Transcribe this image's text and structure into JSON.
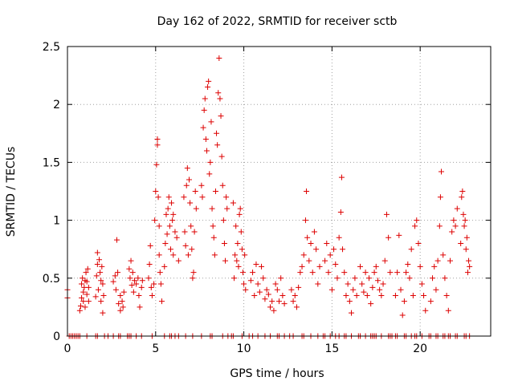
{
  "chart_data": {
    "type": "scatter",
    "title": "Day 162 of 2022, SRMTID for receiver sctb",
    "xlabel": "GPS time / hours",
    "ylabel": "SRMTID / TECUs",
    "xlim": [
      0,
      24
    ],
    "ylim": [
      0,
      2.5
    ],
    "grid": true,
    "marker": "+",
    "color": "#dd0000",
    "x_ticks": [
      0,
      5,
      10,
      15,
      20
    ],
    "x_tick_labels": [
      "0",
      "5",
      "10",
      "15",
      "20"
    ],
    "y_ticks": [
      0,
      0.5,
      1,
      1.5,
      2,
      2.5
    ],
    "y_tick_labels": [
      "0",
      "0.5",
      "1",
      "1.5",
      "2",
      "2.5"
    ],
    "series": [
      {
        "name": "SRMTID",
        "points": [
          [
            0.0,
            0.4
          ],
          [
            0.0,
            0.33
          ],
          [
            0.7,
            0.22
          ],
          [
            0.75,
            0.26
          ],
          [
            0.8,
            0.33
          ],
          [
            0.8,
            0.45
          ],
          [
            0.85,
            0.5
          ],
          [
            0.9,
            0.38
          ],
          [
            0.9,
            0.3
          ],
          [
            0.95,
            0.42
          ],
          [
            1.0,
            0.48
          ],
          [
            1.0,
            0.25
          ],
          [
            1.05,
            0.55
          ],
          [
            1.1,
            0.36
          ],
          [
            1.1,
            0.47
          ],
          [
            1.15,
            0.58
          ],
          [
            1.2,
            0.42
          ],
          [
            1.2,
            0.3
          ],
          [
            1.6,
            0.34
          ],
          [
            1.65,
            0.52
          ],
          [
            1.7,
            0.62
          ],
          [
            1.7,
            0.72
          ],
          [
            1.75,
            0.4
          ],
          [
            1.8,
            0.66
          ],
          [
            1.85,
            0.55
          ],
          [
            1.9,
            0.48
          ],
          [
            1.9,
            0.3
          ],
          [
            1.95,
            0.6
          ],
          [
            2.0,
            0.45
          ],
          [
            2.0,
            0.2
          ],
          [
            2.05,
            0.35
          ],
          [
            2.6,
            0.47
          ],
          [
            2.7,
            0.52
          ],
          [
            2.75,
            0.4
          ],
          [
            2.8,
            0.83
          ],
          [
            2.85,
            0.55
          ],
          [
            2.9,
            0.28
          ],
          [
            3.0,
            0.35
          ],
          [
            3.0,
            0.22
          ],
          [
            3.1,
            0.3
          ],
          [
            3.15,
            0.25
          ],
          [
            3.2,
            0.38
          ],
          [
            3.5,
            0.58
          ],
          [
            3.55,
            0.5
          ],
          [
            3.6,
            0.65
          ],
          [
            3.65,
            0.44
          ],
          [
            3.7,
            0.55
          ],
          [
            3.75,
            0.38
          ],
          [
            3.8,
            0.48
          ],
          [
            3.9,
            0.45
          ],
          [
            4.0,
            0.5
          ],
          [
            4.05,
            0.35
          ],
          [
            4.1,
            0.25
          ],
          [
            4.2,
            0.42
          ],
          [
            4.25,
            0.48
          ],
          [
            4.6,
            0.5
          ],
          [
            4.65,
            0.62
          ],
          [
            4.7,
            0.78
          ],
          [
            4.75,
            0.42
          ],
          [
            4.8,
            0.35
          ],
          [
            4.9,
            0.45
          ],
          [
            4.95,
            1.0
          ],
          [
            5.0,
            1.25
          ],
          [
            5.05,
            1.48
          ],
          [
            5.1,
            1.7
          ],
          [
            5.1,
            1.65
          ],
          [
            5.15,
            1.2
          ],
          [
            5.2,
            0.95
          ],
          [
            5.2,
            0.7
          ],
          [
            5.25,
            0.55
          ],
          [
            5.3,
            0.45
          ],
          [
            5.35,
            0.3
          ],
          [
            5.5,
            0.6
          ],
          [
            5.55,
            0.8
          ],
          [
            5.6,
            1.05
          ],
          [
            5.65,
            0.88
          ],
          [
            5.7,
            1.1
          ],
          [
            5.75,
            1.2
          ],
          [
            5.8,
            0.95
          ],
          [
            5.85,
            0.75
          ],
          [
            5.9,
            1.15
          ],
          [
            5.95,
            1.0
          ],
          [
            6.0,
            1.05
          ],
          [
            6.0,
            0.7
          ],
          [
            6.1,
            0.9
          ],
          [
            6.2,
            0.85
          ],
          [
            6.3,
            0.65
          ],
          [
            6.6,
            1.2
          ],
          [
            6.65,
            0.9
          ],
          [
            6.7,
            0.78
          ],
          [
            6.75,
            1.3
          ],
          [
            6.8,
            1.45
          ],
          [
            6.85,
            0.7
          ],
          [
            6.9,
            1.35
          ],
          [
            6.95,
            1.15
          ],
          [
            7.0,
            0.95
          ],
          [
            7.05,
            0.75
          ],
          [
            7.1,
            0.5
          ],
          [
            7.15,
            0.55
          ],
          [
            7.2,
            0.9
          ],
          [
            7.25,
            1.25
          ],
          [
            7.3,
            1.1
          ],
          [
            7.6,
            1.3
          ],
          [
            7.65,
            1.2
          ],
          [
            7.7,
            1.8
          ],
          [
            7.75,
            1.95
          ],
          [
            7.8,
            2.05
          ],
          [
            7.85,
            1.7
          ],
          [
            7.9,
            1.6
          ],
          [
            7.95,
            2.15
          ],
          [
            8.0,
            2.2
          ],
          [
            8.05,
            1.4
          ],
          [
            8.1,
            1.5
          ],
          [
            8.15,
            1.85
          ],
          [
            8.2,
            1.1
          ],
          [
            8.25,
            0.95
          ],
          [
            8.3,
            0.85
          ],
          [
            8.35,
            0.7
          ],
          [
            8.4,
            1.25
          ],
          [
            8.45,
            1.75
          ],
          [
            8.5,
            1.65
          ],
          [
            8.55,
            2.1
          ],
          [
            8.6,
            2.4
          ],
          [
            8.65,
            2.05
          ],
          [
            8.7,
            1.9
          ],
          [
            8.75,
            1.55
          ],
          [
            8.8,
            1.3
          ],
          [
            8.85,
            1.0
          ],
          [
            8.9,
            0.8
          ],
          [
            8.95,
            0.65
          ],
          [
            9.0,
            1.2
          ],
          [
            9.05,
            1.1
          ],
          [
            9.4,
            1.15
          ],
          [
            9.45,
            0.5
          ],
          [
            9.5,
            0.7
          ],
          [
            9.55,
            0.95
          ],
          [
            9.6,
            0.65
          ],
          [
            9.65,
            0.8
          ],
          [
            9.7,
            0.6
          ],
          [
            9.75,
            1.05
          ],
          [
            9.8,
            1.1
          ],
          [
            9.85,
            0.9
          ],
          [
            9.9,
            0.75
          ],
          [
            9.95,
            0.55
          ],
          [
            10.0,
            0.45
          ],
          [
            10.05,
            0.7
          ],
          [
            10.1,
            0.4
          ],
          [
            10.4,
            0.48
          ],
          [
            10.5,
            0.55
          ],
          [
            10.6,
            0.35
          ],
          [
            10.7,
            0.62
          ],
          [
            10.8,
            0.45
          ],
          [
            10.9,
            0.38
          ],
          [
            11.0,
            0.6
          ],
          [
            11.1,
            0.5
          ],
          [
            11.2,
            0.32
          ],
          [
            11.3,
            0.4
          ],
          [
            11.4,
            0.36
          ],
          [
            11.5,
            0.25
          ],
          [
            11.6,
            0.3
          ],
          [
            11.7,
            0.22
          ],
          [
            11.8,
            0.45
          ],
          [
            11.9,
            0.4
          ],
          [
            12.0,
            0.3
          ],
          [
            12.1,
            0.5
          ],
          [
            12.2,
            0.35
          ],
          [
            12.3,
            0.28
          ],
          [
            12.7,
            0.4
          ],
          [
            12.8,
            0.3
          ],
          [
            12.9,
            0.35
          ],
          [
            13.0,
            0.25
          ],
          [
            13.1,
            0.42
          ],
          [
            13.2,
            0.55
          ],
          [
            13.3,
            0.6
          ],
          [
            13.4,
            0.7
          ],
          [
            13.5,
            1.0
          ],
          [
            13.55,
            1.25
          ],
          [
            13.6,
            0.85
          ],
          [
            13.7,
            0.65
          ],
          [
            13.8,
            0.8
          ],
          [
            13.9,
            0.55
          ],
          [
            14.0,
            0.9
          ],
          [
            14.1,
            0.75
          ],
          [
            14.2,
            0.45
          ],
          [
            14.3,
            0.6
          ],
          [
            14.6,
            0.65
          ],
          [
            14.7,
            0.8
          ],
          [
            14.8,
            0.55
          ],
          [
            14.9,
            0.7
          ],
          [
            15.0,
            0.4
          ],
          [
            15.1,
            0.75
          ],
          [
            15.2,
            0.62
          ],
          [
            15.3,
            0.5
          ],
          [
            15.4,
            0.85
          ],
          [
            15.5,
            1.07
          ],
          [
            15.55,
            1.37
          ],
          [
            15.6,
            0.75
          ],
          [
            15.7,
            0.55
          ],
          [
            15.8,
            0.35
          ],
          [
            15.9,
            0.45
          ],
          [
            16.0,
            0.3
          ],
          [
            16.1,
            0.2
          ],
          [
            16.2,
            0.4
          ],
          [
            16.3,
            0.5
          ],
          [
            16.4,
            0.35
          ],
          [
            16.6,
            0.6
          ],
          [
            16.7,
            0.45
          ],
          [
            16.8,
            0.38
          ],
          [
            16.9,
            0.55
          ],
          [
            17.0,
            0.35
          ],
          [
            17.1,
            0.5
          ],
          [
            17.2,
            0.28
          ],
          [
            17.3,
            0.42
          ],
          [
            17.4,
            0.55
          ],
          [
            17.5,
            0.6
          ],
          [
            17.6,
            0.48
          ],
          [
            17.7,
            0.4
          ],
          [
            17.8,
            0.35
          ],
          [
            17.9,
            0.45
          ],
          [
            18.0,
            0.65
          ],
          [
            18.1,
            1.05
          ],
          [
            18.2,
            0.85
          ],
          [
            18.3,
            0.55
          ],
          [
            18.6,
            0.35
          ],
          [
            18.7,
            0.55
          ],
          [
            18.8,
            0.87
          ],
          [
            18.9,
            0.4
          ],
          [
            19.0,
            0.18
          ],
          [
            19.1,
            0.3
          ],
          [
            19.2,
            0.55
          ],
          [
            19.3,
            0.62
          ],
          [
            19.4,
            0.5
          ],
          [
            19.5,
            0.75
          ],
          [
            19.6,
            0.35
          ],
          [
            19.7,
            0.95
          ],
          [
            19.8,
            1.0
          ],
          [
            19.9,
            0.8
          ],
          [
            20.0,
            0.6
          ],
          [
            20.1,
            0.45
          ],
          [
            20.2,
            0.35
          ],
          [
            20.3,
            0.22
          ],
          [
            20.6,
            0.3
          ],
          [
            20.7,
            0.5
          ],
          [
            20.8,
            0.6
          ],
          [
            20.9,
            0.4
          ],
          [
            21.0,
            0.65
          ],
          [
            21.1,
            0.95
          ],
          [
            21.15,
            1.2
          ],
          [
            21.2,
            1.42
          ],
          [
            21.3,
            0.7
          ],
          [
            21.4,
            0.5
          ],
          [
            21.5,
            0.35
          ],
          [
            21.6,
            0.22
          ],
          [
            21.7,
            0.65
          ],
          [
            21.8,
            0.9
          ],
          [
            21.9,
            1.0
          ],
          [
            22.0,
            0.95
          ],
          [
            22.1,
            1.1
          ],
          [
            22.3,
            0.8
          ],
          [
            22.35,
            1.2
          ],
          [
            22.4,
            1.25
          ],
          [
            22.45,
            1.05
          ],
          [
            22.5,
            0.95
          ],
          [
            22.55,
            1.0
          ],
          [
            22.6,
            0.75
          ],
          [
            22.65,
            0.85
          ],
          [
            22.7,
            0.55
          ],
          [
            22.75,
            0.65
          ],
          [
            22.8,
            0.6
          ]
        ],
        "zero_points_x": [
          0.1,
          0.2,
          0.3,
          0.4,
          0.5,
          0.6,
          0.7,
          1.1,
          1.6,
          1.7,
          2.1,
          2.3,
          2.6,
          2.9,
          3.0,
          3.4,
          3.5,
          3.6,
          3.9,
          4.2,
          4.8,
          5.5,
          5.8,
          5.9,
          6.1,
          6.3,
          6.7,
          7.1,
          7.6,
          8.1,
          8.2,
          8.8,
          9.1,
          9.3,
          9.4,
          9.9,
          10.3,
          10.5,
          10.8,
          11.2,
          11.5,
          11.9,
          12.0,
          12.3,
          12.6,
          12.8,
          13.3,
          13.4,
          13.8,
          14.2,
          14.5,
          14.6,
          14.9,
          15.2,
          15.4,
          15.7,
          15.8,
          16.1,
          16.5,
          16.6,
          16.9,
          17.2,
          17.3,
          17.4,
          17.5,
          17.8,
          18.2,
          18.3,
          18.4,
          18.6,
          18.7,
          19.1,
          19.2,
          19.5,
          19.7,
          19.8,
          20.1,
          20.5,
          20.6,
          20.9,
          21.0,
          21.3,
          21.4,
          21.6,
          21.7,
          22.0,
          22.1,
          22.5,
          22.6,
          22.8
        ]
      }
    ]
  }
}
